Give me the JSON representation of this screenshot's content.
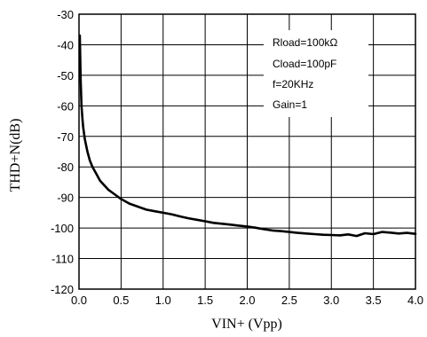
{
  "chart_data": {
    "type": "line",
    "title": "",
    "xlabel": "VIN+ (Vpp)",
    "ylabel": "THD+N(dB)",
    "xlim": [
      0.0,
      4.0
    ],
    "ylim": [
      -120,
      -30
    ],
    "x_ticks": [
      0.0,
      0.5,
      1.0,
      1.5,
      2.0,
      2.5,
      3.0,
      3.5,
      4.0
    ],
    "x_tick_labels": [
      "0.0",
      "0.5",
      "1.0",
      "1.5",
      "2.0",
      "2.5",
      "3.0",
      "3.5",
      "4.0"
    ],
    "y_ticks": [
      -30,
      -40,
      -50,
      -60,
      -70,
      -80,
      -90,
      -100,
      -110,
      -120
    ],
    "y_tick_labels": [
      "-30",
      "-40",
      "-50",
      "-60",
      "-70",
      "-80",
      "-90",
      "-100",
      "-110",
      "-120"
    ],
    "grid": true,
    "annotations": [
      "Rload=100kΩ",
      "Cload=100pF",
      "f=20KHz",
      "Gain=1"
    ],
    "annotation_position": "top-right",
    "series": [
      {
        "color": "#000000",
        "x": [
          0.01,
          0.02,
          0.03,
          0.04,
          0.05,
          0.07,
          0.1,
          0.13,
          0.16,
          0.2,
          0.25,
          0.3,
          0.35,
          0.4,
          0.5,
          0.6,
          0.7,
          0.8,
          0.9,
          1.0,
          1.1,
          1.2,
          1.3,
          1.4,
          1.5,
          1.6,
          1.7,
          1.8,
          1.9,
          2.0,
          2.1,
          2.2,
          2.3,
          2.4,
          2.5,
          2.6,
          2.7,
          2.8,
          2.9,
          3.0,
          3.1,
          3.2,
          3.3,
          3.4,
          3.5,
          3.6,
          3.7,
          3.8,
          3.9,
          4.0
        ],
        "values": [
          -37,
          -52,
          -60,
          -64,
          -67,
          -71,
          -75,
          -78,
          -80,
          -82,
          -84.5,
          -86,
          -87.5,
          -88.5,
          -90.5,
          -92,
          -93,
          -94,
          -94.5,
          -95,
          -95.5,
          -96.2,
          -96.8,
          -97.3,
          -97.8,
          -98.3,
          -98.6,
          -98.9,
          -99.2,
          -99.5,
          -99.9,
          -100.4,
          -100.8,
          -101.0,
          -101.3,
          -101.6,
          -101.8,
          -102.0,
          -102.2,
          -102.3,
          -102.4,
          -102.1,
          -102.6,
          -101.7,
          -102.0,
          -101.3,
          -101.5,
          -101.8,
          -101.6,
          -101.9
        ]
      }
    ]
  }
}
